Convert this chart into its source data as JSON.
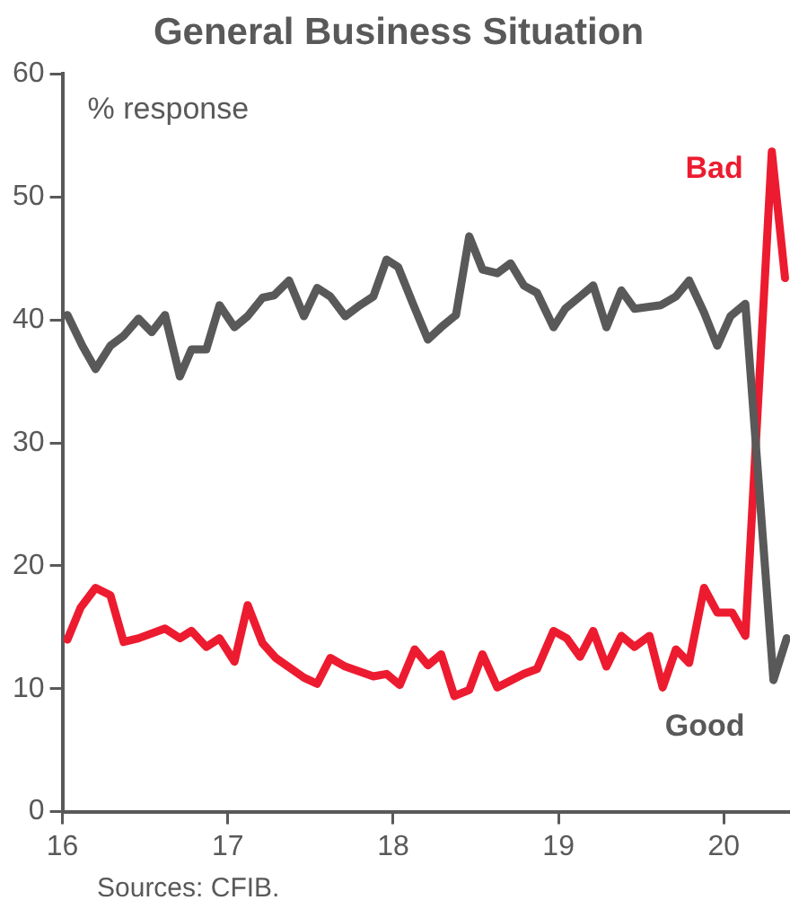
{
  "chart_data": {
    "type": "line",
    "title": "General Business Situation",
    "ylabel": "% response",
    "annotations": [
      "Sources: CFIB."
    ],
    "xlim": [
      16,
      20.4
    ],
    "xticks": [
      16,
      17,
      18,
      19,
      20
    ],
    "ylim": [
      0,
      60
    ],
    "yticks": [
      0,
      10,
      20,
      30,
      40,
      50,
      60
    ],
    "grid": false,
    "legend": false,
    "marker": "none",
    "line_style": "solid",
    "series": [
      {
        "name": "Good",
        "color": "#595959",
        "x": [
          16.03,
          16.12,
          16.2,
          16.29,
          16.37,
          16.46,
          16.54,
          16.62,
          16.71,
          16.78,
          16.87,
          16.95,
          17.04,
          17.12,
          17.21,
          17.28,
          17.37,
          17.46,
          17.54,
          17.62,
          17.71,
          17.8,
          17.88,
          17.96,
          18.03,
          18.12,
          18.21,
          18.29,
          18.38,
          18.46,
          18.54,
          18.63,
          18.71,
          18.79,
          18.87,
          18.97,
          19.04,
          19.13,
          19.21,
          19.29,
          19.38,
          19.46,
          19.62,
          19.71,
          19.79,
          19.88,
          19.96,
          20.04,
          20.13,
          20.3,
          20.38
        ],
        "values": [
          40.4,
          37.9,
          36,
          37.9,
          38.7,
          40.1,
          39,
          40.4,
          35.4,
          37.6,
          37.6,
          41.2,
          39.4,
          40.3,
          41.8,
          42,
          43.2,
          40.3,
          42.6,
          41.9,
          40.3,
          41.2,
          41.9,
          44.9,
          44.3,
          41.3,
          38.4,
          39.4,
          40.4,
          46.8,
          44.1,
          43.8,
          44.6,
          42.8,
          42.2,
          39.4,
          40.9,
          41.9,
          42.8,
          39.4,
          42.4,
          40.9,
          41.2,
          41.9,
          43.2,
          40.6,
          37.9,
          40.3,
          41.3,
          10.7,
          14.1
        ]
      },
      {
        "name": "Bad",
        "color": "#ed1b2f",
        "x": [
          16.03,
          16.11,
          16.2,
          16.29,
          16.37,
          16.46,
          16.62,
          16.71,
          16.78,
          16.87,
          16.95,
          17.04,
          17.12,
          17.21,
          17.29,
          17.46,
          17.54,
          17.62,
          17.71,
          17.88,
          17.96,
          18.04,
          18.13,
          18.21,
          18.29,
          18.37,
          18.46,
          18.54,
          18.63,
          18.79,
          18.87,
          18.97,
          19.05,
          19.13,
          19.21,
          19.29,
          19.38,
          19.46,
          19.55,
          19.63,
          19.71,
          19.79,
          19.88,
          19.96,
          20.05,
          20.13,
          20.29,
          20.37
        ],
        "values": [
          14,
          16.6,
          18.2,
          17.6,
          13.8,
          14.1,
          14.9,
          14.1,
          14.7,
          13.4,
          14.1,
          12.2,
          16.8,
          13.7,
          12.5,
          10.9,
          10.4,
          12.5,
          11.8,
          11,
          11.2,
          10.3,
          13.2,
          11.9,
          12.8,
          9.4,
          9.9,
          12.8,
          10.1,
          11.2,
          11.6,
          14.7,
          14.1,
          12.6,
          14.7,
          11.8,
          14.3,
          13.4,
          14.3,
          10.1,
          13.2,
          12.1,
          18.2,
          16.2,
          16.2,
          14.3,
          53.7,
          43.4
        ]
      }
    ]
  }
}
